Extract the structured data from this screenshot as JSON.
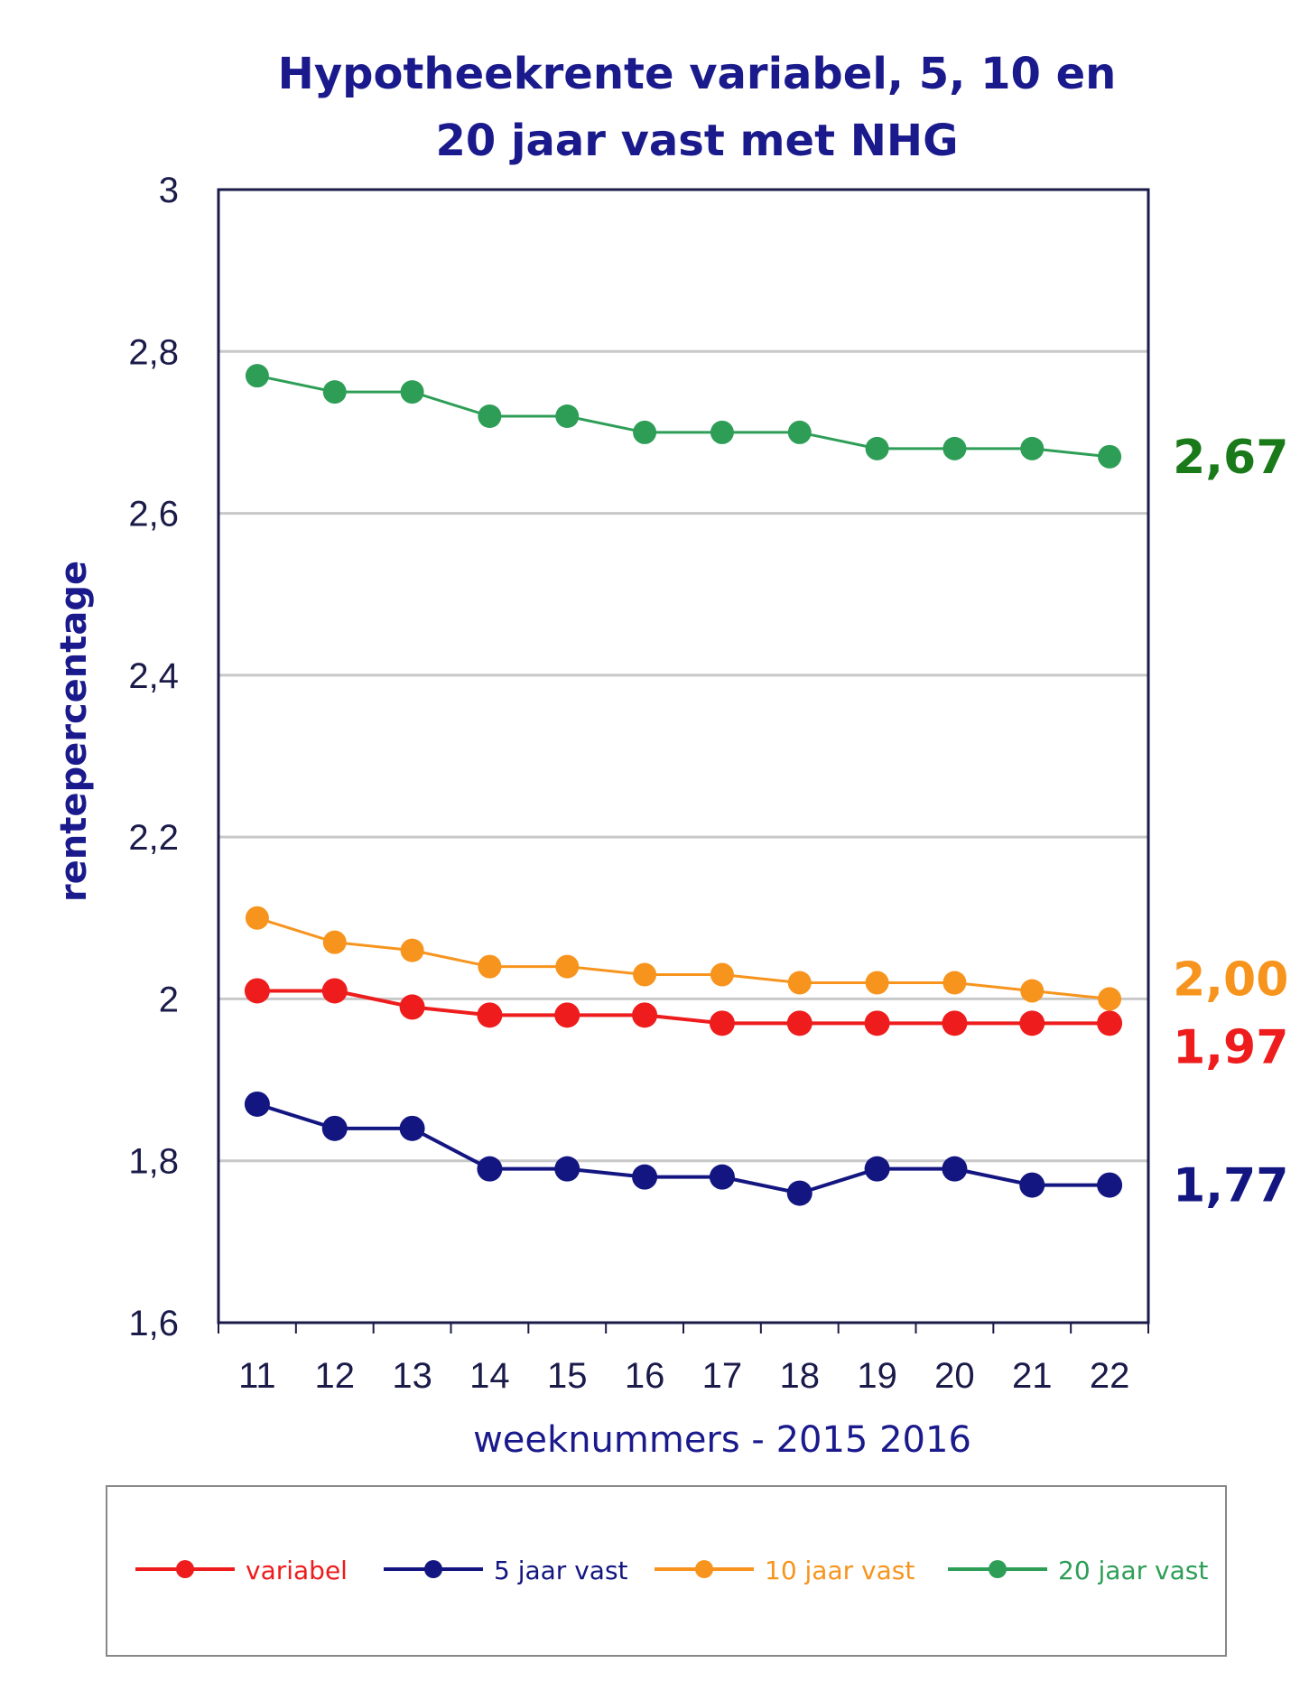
{
  "chart_data": {
    "type": "line",
    "title_lines": [
      "Hypotheekrente variabel, 5, 10 en",
      "20 jaar vast met NHG"
    ],
    "xlabel": "weeknummers - 2015 2016",
    "ylabel": "rentepercentage",
    "categories": [
      "11",
      "12",
      "13",
      "14",
      "15",
      "16",
      "17",
      "18",
      "19",
      "20",
      "21",
      "22"
    ],
    "ylim": [
      1.6,
      3.0
    ],
    "yticks": [
      1.6,
      1.8,
      2.0,
      2.2,
      2.4,
      2.6,
      2.8,
      3.0
    ],
    "ytick_labels": [
      "1,6",
      "1,8",
      "2",
      "2,2",
      "2,4",
      "2,6",
      "2,8",
      "3"
    ],
    "grid": true,
    "legend_position": "bottom",
    "series": [
      {
        "name": "variabel",
        "color": "#ee1c1c",
        "values": [
          2.01,
          2.01,
          1.99,
          1.98,
          1.98,
          1.98,
          1.97,
          1.97,
          1.97,
          1.97,
          1.97,
          1.97
        ],
        "end_label": "1,97"
      },
      {
        "name": "5 jaar vast",
        "color": "#131680",
        "values": [
          1.87,
          1.84,
          1.84,
          1.79,
          1.79,
          1.78,
          1.78,
          1.76,
          1.79,
          1.79,
          1.77,
          1.77
        ],
        "end_label": "1,77"
      },
      {
        "name": "10 jaar vast",
        "color": "#f7941d",
        "values": [
          2.1,
          2.07,
          2.06,
          2.04,
          2.04,
          2.03,
          2.03,
          2.02,
          2.02,
          2.02,
          2.01,
          2.0
        ],
        "end_label": "2,00"
      },
      {
        "name": "20 jaar vast",
        "color": "#2e9e57",
        "values": [
          2.77,
          2.75,
          2.75,
          2.72,
          2.72,
          2.7,
          2.7,
          2.7,
          2.68,
          2.68,
          2.68,
          2.67
        ],
        "end_label": "2,67"
      }
    ],
    "end_label_colors": [
      "#ee1c1c",
      "#131680",
      "#f7941d",
      "#1a7a1a"
    ]
  }
}
